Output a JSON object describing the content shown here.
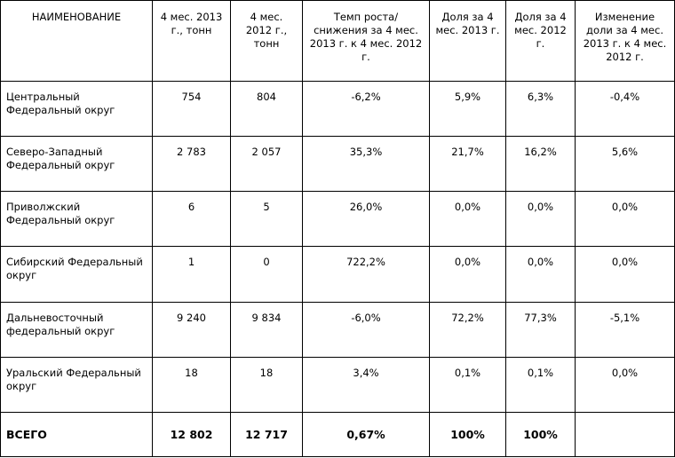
{
  "headers": [
    "НАИМЕНОВАНИЕ",
    "4 мес. 2013 г., тонн",
    "4 мес. 2012 г., тонн",
    "Темп роста/снижения за 4 мес. 2013 г. к 4 мес. 2012 г.",
    "Доля за 4 мес. 2013 г.",
    "Доля за 4 мес. 2012 г.",
    "Изменение доли за 4 мес. 2013 г. к 4 мес. 2012 г."
  ],
  "rows": [
    {
      "name": "Центральный Федеральный округ",
      "v2013": "754",
      "v2012": "804",
      "growth": "-6,2%",
      "share2013": "5,9%",
      "share2012": "6,3%",
      "share_change": "-0,4%"
    },
    {
      "name": "Северо-Западный Федеральный округ",
      "v2013": "2 783",
      "v2012": "2 057",
      "growth": "35,3%",
      "share2013": "21,7%",
      "share2012": "16,2%",
      "share_change": "5,6%"
    },
    {
      "name": "Приволжский Федеральный округ",
      "v2013": "6",
      "v2012": "5",
      "growth": "26,0%",
      "share2013": "0,0%",
      "share2012": "0,0%",
      "share_change": "0,0%"
    },
    {
      "name": "Сибирский Федеральный округ",
      "v2013": "1",
      "v2012": "0",
      "growth": "722,2%",
      "share2013": "0,0%",
      "share2012": "0,0%",
      "share_change": "0,0%"
    },
    {
      "name": "Дальневосточный федеральный округ",
      "v2013": "9 240",
      "v2012": "9 834",
      "growth": "-6,0%",
      "share2013": "72,2%",
      "share2012": "77,3%",
      "share_change": "-5,1%"
    },
    {
      "name": "Уральский Федеральный округ",
      "v2013": "18",
      "v2012": "18",
      "growth": "3,4%",
      "share2013": "0,1%",
      "share2012": "0,1%",
      "share_change": "0,0%"
    }
  ],
  "total": {
    "name": "ВСЕГО",
    "v2013": "12 802",
    "v2012": "12 717",
    "growth": "0,67%",
    "share2013": "100%",
    "share2012": "100%",
    "share_change": ""
  }
}
